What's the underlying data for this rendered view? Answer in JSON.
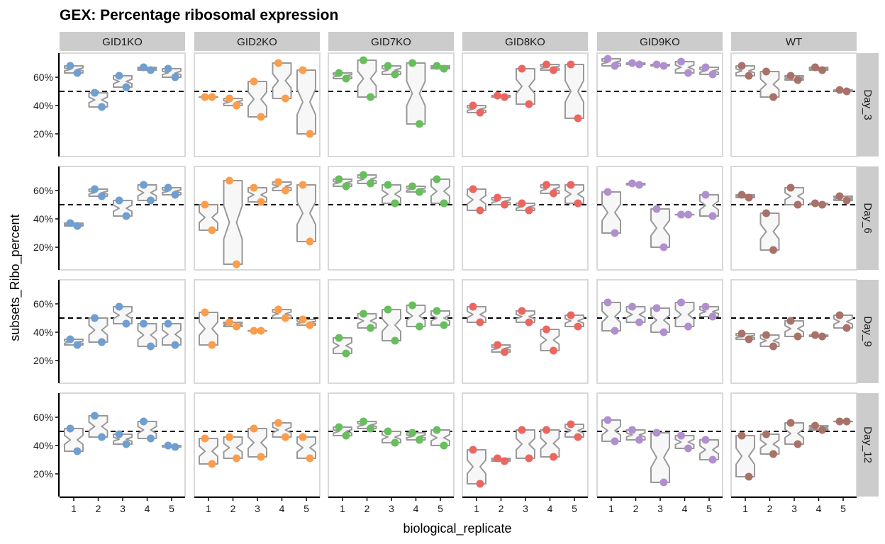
{
  "chart_data": {
    "type": "violin-dot-facet",
    "title": "GEX: Percentage ribosomal expression",
    "xlabel": "biological_replicate",
    "ylabel": "subsets_Ribo_percent",
    "reference_line": 50,
    "ylim": [
      4,
      77
    ],
    "yticks": [
      20,
      40,
      60
    ],
    "ytick_labels": [
      "20%",
      "40%",
      "60%"
    ],
    "xticks": [
      "1",
      "2",
      "3",
      "4",
      "5"
    ],
    "columns": [
      "GID1KO",
      "GID2KO",
      "GID7KO",
      "GID8KO",
      "GID9KO",
      "WT"
    ],
    "rows": [
      "Day_3",
      "Day_6",
      "Day_9",
      "Day_12"
    ],
    "colors": {
      "GID1KO": "#6f9fd0",
      "GID2KO": "#fc9d4c",
      "GID7KO": "#66bf5c",
      "GID8KO": "#ec6660",
      "GID9KO": "#b08fcf",
      "WT": "#a87268"
    },
    "panels": {
      "Day_3": {
        "GID1KO": [
          [
            68,
            63
          ],
          [
            49,
            39
          ],
          [
            61,
            53
          ],
          [
            67,
            65
          ],
          [
            66,
            60
          ]
        ],
        "GID2KO": [
          [
            46,
            46
          ],
          [
            45,
            40
          ],
          [
            57,
            32
          ],
          [
            70,
            45
          ],
          [
            65,
            20
          ]
        ],
        "GID7KO": [
          [
            63,
            59
          ],
          [
            72,
            46
          ],
          [
            68,
            62
          ],
          [
            70,
            27
          ],
          [
            68,
            66
          ]
        ],
        "GID8KO": [
          [
            40,
            35
          ],
          [
            47,
            46
          ],
          [
            66,
            41
          ],
          [
            69,
            65
          ],
          [
            69,
            31
          ]
        ],
        "GID9KO": [
          [
            73,
            68
          ],
          [
            70,
            69
          ],
          [
            69,
            68
          ],
          [
            71,
            63
          ],
          [
            67,
            62
          ]
        ],
        "WT": [
          [
            68,
            61
          ],
          [
            64,
            46
          ],
          [
            61,
            58
          ],
          [
            67,
            65
          ],
          [
            51,
            50
          ]
        ]
      },
      "Day_6": {
        "GID1KO": [
          [
            37,
            35
          ],
          [
            61,
            56
          ],
          [
            53,
            42
          ],
          [
            64,
            53
          ],
          [
            62,
            57
          ]
        ],
        "GID2KO": [
          [
            50,
            32
          ],
          [
            67,
            8
          ],
          [
            62,
            52
          ],
          [
            66,
            60
          ],
          [
            64,
            24
          ]
        ],
        "GID7KO": [
          [
            68,
            63
          ],
          [
            71,
            65
          ],
          [
            64,
            51
          ],
          [
            63,
            59
          ],
          [
            68,
            51
          ]
        ],
        "GID8KO": [
          [
            61,
            46
          ],
          [
            55,
            50
          ],
          [
            51,
            46
          ],
          [
            64,
            58
          ],
          [
            64,
            51
          ]
        ],
        "GID9KO": [
          [
            59,
            30
          ],
          [
            65,
            64
          ],
          [
            47,
            20
          ],
          [
            43,
            43
          ],
          [
            57,
            42
          ]
        ],
        "WT": [
          [
            57,
            55
          ],
          [
            44,
            18
          ],
          [
            62,
            50
          ],
          [
            51,
            50
          ],
          [
            56,
            53
          ]
        ]
      },
      "Day_9": {
        "GID1KO": [
          [
            35,
            31
          ],
          [
            50,
            33
          ],
          [
            58,
            46
          ],
          [
            46,
            30
          ],
          [
            46,
            31
          ]
        ],
        "GID2KO": [
          [
            54,
            31
          ],
          [
            47,
            44
          ],
          [
            41,
            41
          ],
          [
            56,
            50
          ],
          [
            49,
            45
          ]
        ],
        "GID7KO": [
          [
            36,
            25
          ],
          [
            53,
            43
          ],
          [
            56,
            34
          ],
          [
            59,
            44
          ],
          [
            55,
            45
          ]
        ],
        "GID8KO": [
          [
            58,
            47
          ],
          [
            31,
            26
          ],
          [
            55,
            47
          ],
          [
            42,
            27
          ],
          [
            52,
            44
          ]
        ],
        "GID9KO": [
          [
            61,
            41
          ],
          [
            58,
            47
          ],
          [
            57,
            40
          ],
          [
            61,
            44
          ],
          [
            58,
            51
          ]
        ],
        "WT": [
          [
            39,
            35
          ],
          [
            38,
            30
          ],
          [
            48,
            37
          ],
          [
            38,
            37
          ],
          [
            52,
            43
          ]
        ]
      },
      "Day_12": {
        "GID1KO": [
          [
            52,
            36
          ],
          [
            61,
            46
          ],
          [
            48,
            41
          ],
          [
            57,
            45
          ],
          [
            40,
            39
          ]
        ],
        "GID2KO": [
          [
            45,
            27
          ],
          [
            46,
            31
          ],
          [
            52,
            32
          ],
          [
            56,
            46
          ],
          [
            46,
            31
          ]
        ],
        "GID7KO": [
          [
            53,
            47
          ],
          [
            57,
            52
          ],
          [
            50,
            42
          ],
          [
            49,
            44
          ],
          [
            51,
            40
          ]
        ],
        "GID8KO": [
          [
            37,
            13
          ],
          [
            31,
            29
          ],
          [
            51,
            31
          ],
          [
            51,
            32
          ],
          [
            55,
            46
          ]
        ],
        "GID9KO": [
          [
            58,
            43
          ],
          [
            51,
            44
          ],
          [
            49,
            14
          ],
          [
            47,
            38
          ],
          [
            44,
            30
          ]
        ],
        "WT": [
          [
            47,
            18
          ],
          [
            48,
            34
          ],
          [
            56,
            41
          ],
          [
            54,
            51
          ],
          [
            57,
            57
          ]
        ]
      }
    }
  }
}
